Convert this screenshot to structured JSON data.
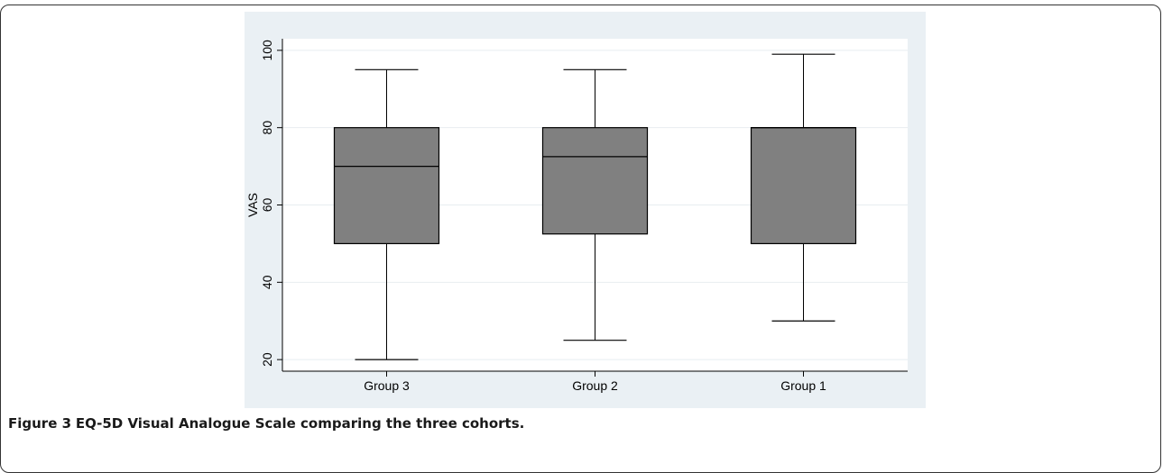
{
  "caption": {
    "label": "Figure 3",
    "text": "EQ-5D Visual Analogue Scale comparing the three cohorts."
  },
  "colors": {
    "panel_bg": "#eaf0f4",
    "plot_bg": "#ffffff",
    "box_fill": "#808080",
    "stroke": "#000000",
    "grid": "#e8edf0"
  },
  "chart_data": {
    "type": "box",
    "title": "",
    "xlabel": "",
    "ylabel": "VAS",
    "ylim": [
      20,
      100
    ],
    "yticks": [
      20,
      40,
      60,
      80,
      100
    ],
    "grid": true,
    "categories": [
      "Group 3",
      "Group 2",
      "Group 1"
    ],
    "boxes": [
      {
        "category": "Group 3",
        "min": 20,
        "q1": 50,
        "median": 70,
        "q3": 80,
        "max": 95
      },
      {
        "category": "Group 2",
        "min": 25,
        "q1": 52.5,
        "median": 72.5,
        "q3": 80,
        "max": 95
      },
      {
        "category": "Group 1",
        "min": 30,
        "q1": 50,
        "median": 80,
        "q3": 80,
        "max": 99
      }
    ]
  }
}
